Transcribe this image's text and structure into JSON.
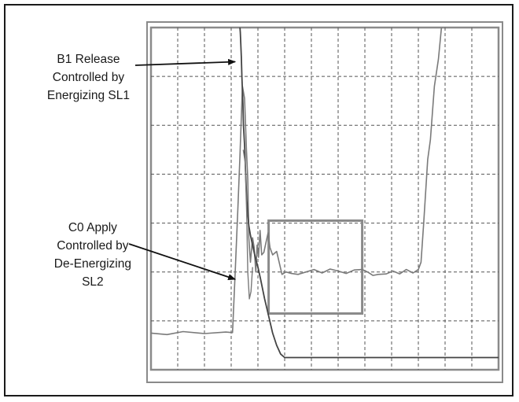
{
  "annotations": {
    "b1_release": [
      "B1 Release",
      "Controlled by",
      "Energizing SL1"
    ],
    "c0_apply": [
      "C0 Apply",
      "Controlled by",
      "De-Energizing",
      "SL2"
    ]
  },
  "colors": {
    "frame": "#1a1a1a",
    "plot_border": "#8a8a8a",
    "grid": "#555555",
    "trace": "#7a7a7a",
    "trace_dark": "#444444",
    "highlight_box": "#8a8a8a",
    "arrow": "#111111"
  },
  "chart_data": {
    "type": "line",
    "title": "",
    "xlabel": "",
    "ylabel": "",
    "grid": true,
    "grid_divisions": {
      "x": 13,
      "y": 7
    },
    "xlim": [
      0,
      13
    ],
    "ylim": [
      0,
      7
    ],
    "series": [
      {
        "role": "rising-light-trace",
        "points": [
          [
            0.0,
            0.75
          ],
          [
            0.6,
            0.72
          ],
          [
            1.2,
            0.78
          ],
          [
            2.0,
            0.74
          ],
          [
            2.8,
            0.77
          ],
          [
            3.05,
            0.76
          ],
          [
            3.15,
            2.0
          ],
          [
            3.25,
            3.3
          ],
          [
            3.33,
            4.4
          ],
          [
            3.42,
            5.8
          ],
          [
            3.5,
            5.55
          ],
          [
            3.57,
            4.5
          ],
          [
            3.62,
            3.9
          ],
          [
            3.66,
            2.7
          ],
          [
            3.72,
            2.2
          ],
          [
            3.8,
            2.7
          ],
          [
            3.86,
            2.5
          ],
          [
            3.92,
            2.0
          ],
          [
            3.97,
            2.55
          ],
          [
            4.02,
            2.3
          ],
          [
            4.08,
            2.85
          ],
          [
            4.14,
            2.35
          ],
          [
            4.22,
            2.4
          ],
          [
            4.3,
            2.6
          ],
          [
            4.38,
            2.8
          ],
          [
            4.45,
            2.5
          ],
          [
            4.55,
            2.35
          ],
          [
            4.7,
            2.42
          ],
          [
            4.9,
            1.95
          ],
          [
            5.05,
            2.0
          ],
          [
            5.25,
            1.97
          ],
          [
            5.5,
            1.95
          ],
          [
            5.8,
            2.0
          ],
          [
            6.1,
            2.05
          ],
          [
            6.4,
            1.98
          ],
          [
            6.7,
            2.06
          ],
          [
            7.0,
            2.02
          ],
          [
            7.3,
            1.97
          ],
          [
            7.6,
            2.04
          ],
          [
            7.9,
            2.05
          ],
          [
            8.1,
            2.0
          ],
          [
            8.3,
            1.93
          ],
          [
            8.5,
            1.95
          ],
          [
            8.8,
            1.96
          ],
          [
            9.05,
            2.02
          ],
          [
            9.3,
            1.96
          ],
          [
            9.55,
            2.05
          ],
          [
            9.8,
            1.98
          ],
          [
            10.0,
            2.05
          ],
          [
            10.1,
            2.2
          ],
          [
            10.2,
            3.0
          ],
          [
            10.35,
            4.3
          ],
          [
            10.45,
            4.7
          ],
          [
            10.6,
            5.8
          ],
          [
            10.75,
            6.35
          ],
          [
            10.9,
            7.2
          ]
        ]
      },
      {
        "role": "falling-dark-trace",
        "points": [
          [
            3.3,
            7.2
          ],
          [
            3.34,
            6.9
          ],
          [
            3.38,
            6.4
          ],
          [
            3.4,
            6.0
          ],
          [
            3.44,
            5.4
          ],
          [
            3.46,
            5.0
          ],
          [
            3.5,
            4.6
          ],
          [
            3.54,
            4.0
          ],
          [
            3.58,
            3.5
          ],
          [
            3.62,
            3.2
          ],
          [
            3.66,
            2.95
          ],
          [
            3.72,
            2.75
          ],
          [
            3.8,
            2.55
          ],
          [
            3.9,
            2.3
          ],
          [
            4.0,
            2.1
          ],
          [
            4.1,
            1.85
          ],
          [
            4.25,
            1.45
          ],
          [
            4.4,
            1.1
          ],
          [
            4.55,
            0.75
          ],
          [
            4.7,
            0.5
          ],
          [
            4.85,
            0.32
          ],
          [
            5.0,
            0.25
          ],
          [
            6.0,
            0.25
          ],
          [
            8.0,
            0.25
          ],
          [
            10.0,
            0.25
          ],
          [
            12.0,
            0.25
          ],
          [
            13.0,
            0.25
          ]
        ]
      },
      {
        "role": "transient-spike",
        "points": [
          [
            3.45,
            4.5
          ],
          [
            3.52,
            4.25
          ],
          [
            3.58,
            3.2
          ],
          [
            3.62,
            2.0
          ],
          [
            3.68,
            1.45
          ],
          [
            3.74,
            1.6
          ],
          [
            3.8,
            2.1
          ]
        ]
      }
    ],
    "highlight_box": {
      "x": [
        4.4,
        7.9
      ],
      "y": [
        1.15,
        3.05
      ]
    },
    "arrows": [
      {
        "label": "b1_release",
        "target": [
          3.15,
          6.3
        ]
      },
      {
        "label": "c0_apply",
        "target": [
          3.15,
          1.85
        ]
      }
    ]
  }
}
